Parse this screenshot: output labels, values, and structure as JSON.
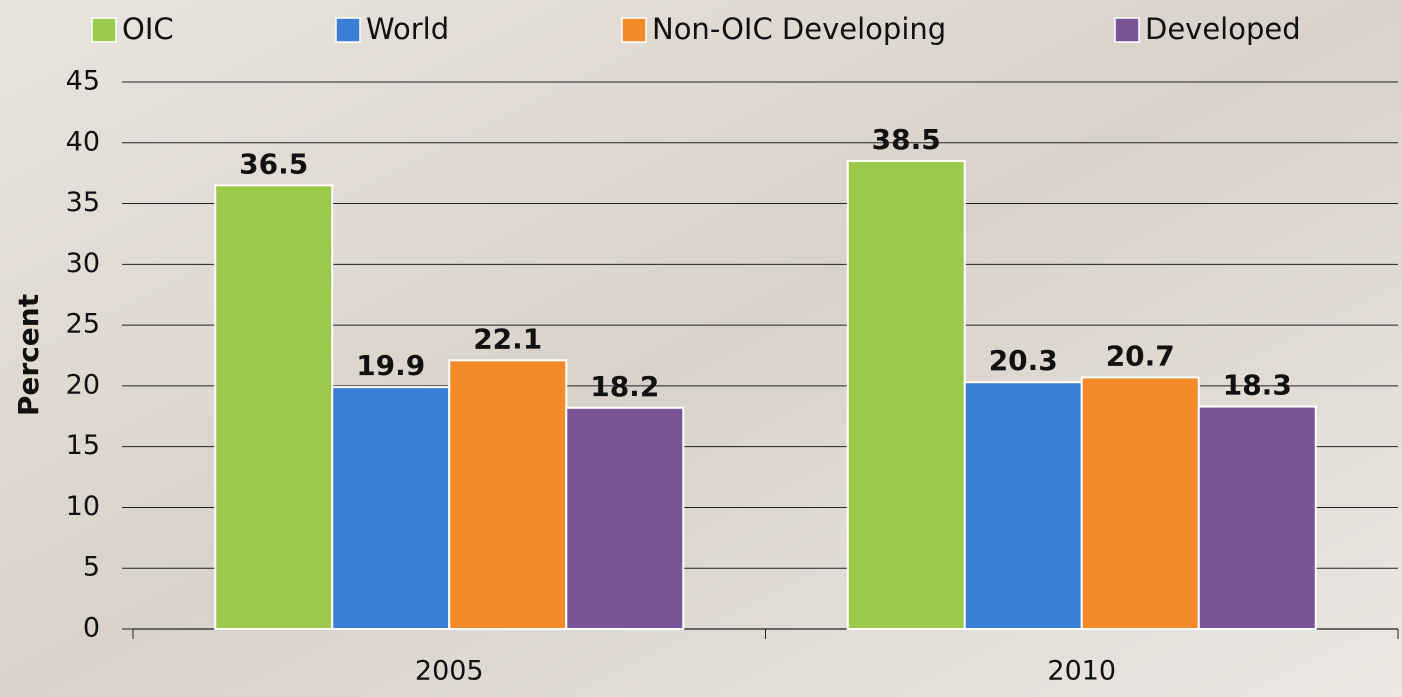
{
  "chart_data": {
    "type": "bar",
    "y_label": "Percent",
    "categories": [
      "2005",
      "2010"
    ],
    "series": [
      {
        "name": "OIC",
        "color": "#9bc94b",
        "values": [
          36.5,
          38.5
        ]
      },
      {
        "name": "World",
        "color": "#3a7fd5",
        "values": [
          19.9,
          20.3
        ]
      },
      {
        "name": "Non-OIC Developing",
        "color": "#f58a2a",
        "values": [
          22.1,
          20.7
        ]
      },
      {
        "name": "Developed",
        "color": "#7b5497",
        "values": [
          18.2,
          18.3
        ]
      }
    ],
    "ylim": [
      0,
      45
    ],
    "yticks": [
      0,
      5,
      10,
      15,
      20,
      25,
      30,
      35,
      40,
      45
    ],
    "grid": true,
    "legend": "top"
  }
}
